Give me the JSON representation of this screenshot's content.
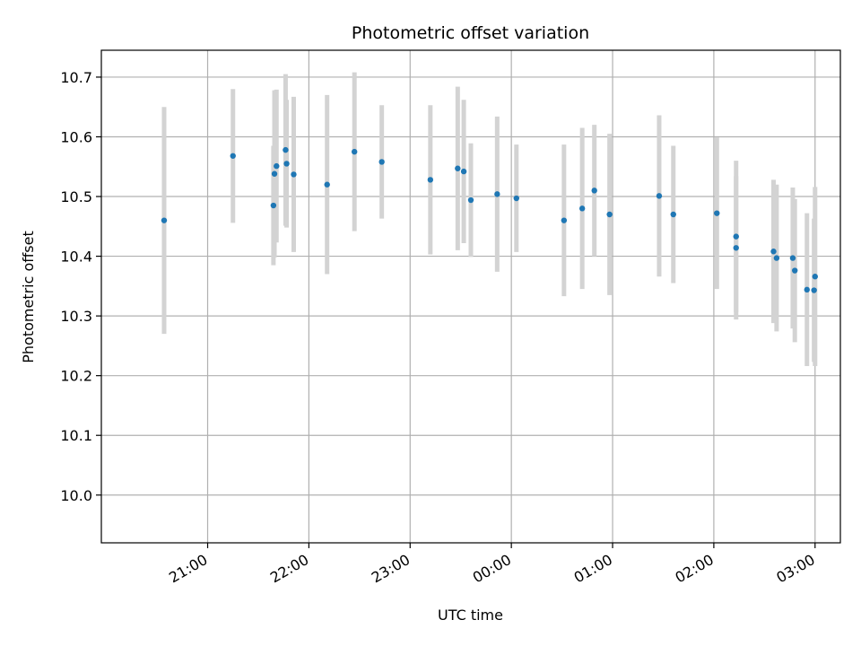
{
  "chart_data": {
    "type": "scatter",
    "title": "Photometric offset variation",
    "xlabel": "UTC time",
    "ylabel": "Photometric offset",
    "grid": true,
    "x_ticks": [
      "21:00",
      "22:00",
      "23:00",
      "00:00",
      "01:00",
      "02:00",
      "03:00"
    ],
    "x_tick_hours": [
      0,
      1,
      2,
      3,
      4,
      5,
      6
    ],
    "x_range_hours": [
      -1.05,
      6.25
    ],
    "x_origin_time": "21:00",
    "y_ticks": [
      "10.0",
      "10.1",
      "10.2",
      "10.3",
      "10.4",
      "10.5",
      "10.6",
      "10.7"
    ],
    "y_tick_values": [
      10.0,
      10.1,
      10.2,
      10.3,
      10.4,
      10.5,
      10.6,
      10.7
    ],
    "ylim": [
      9.92,
      10.745
    ],
    "colors": {
      "point": "#1f77b4",
      "errorbar": "#d3d3d3",
      "grid": "#b0b0b0"
    },
    "series": [
      {
        "points": [
          {
            "t": -0.43,
            "y": 10.46,
            "err": 0.19
          },
          {
            "t": 0.25,
            "y": 10.568,
            "err": 0.112
          },
          {
            "t": 0.65,
            "y": 10.485,
            "err": 0.1
          },
          {
            "t": 0.66,
            "y": 10.538,
            "err": 0.14
          },
          {
            "t": 0.68,
            "y": 10.551,
            "err": 0.128
          },
          {
            "t": 0.77,
            "y": 10.578,
            "err": 0.127
          },
          {
            "t": 0.78,
            "y": 10.555,
            "err": 0.107
          },
          {
            "t": 0.85,
            "y": 10.537,
            "err": 0.13
          },
          {
            "t": 1.18,
            "y": 10.52,
            "err": 0.15
          },
          {
            "t": 1.45,
            "y": 10.575,
            "err": 0.133
          },
          {
            "t": 1.72,
            "y": 10.558,
            "err": 0.095
          },
          {
            "t": 2.2,
            "y": 10.528,
            "err": 0.125
          },
          {
            "t": 2.47,
            "y": 10.547,
            "err": 0.137
          },
          {
            "t": 2.53,
            "y": 10.542,
            "err": 0.12
          },
          {
            "t": 2.6,
            "y": 10.494,
            "err": 0.095
          },
          {
            "t": 2.86,
            "y": 10.504,
            "err": 0.13
          },
          {
            "t": 3.05,
            "y": 10.497,
            "err": 0.09
          },
          {
            "t": 3.52,
            "y": 10.46,
            "err": 0.127
          },
          {
            "t": 3.7,
            "y": 10.48,
            "err": 0.135
          },
          {
            "t": 3.82,
            "y": 10.51,
            "err": 0.11
          },
          {
            "t": 3.97,
            "y": 10.47,
            "err": 0.135
          },
          {
            "t": 4.46,
            "y": 10.501,
            "err": 0.135
          },
          {
            "t": 4.6,
            "y": 10.47,
            "err": 0.115
          },
          {
            "t": 5.03,
            "y": 10.472,
            "err": 0.127
          },
          {
            "t": 5.22,
            "y": 10.433,
            "err": 0.127
          },
          {
            "t": 5.22,
            "y": 10.414,
            "err": 0.12
          },
          {
            "t": 5.59,
            "y": 10.408,
            "err": 0.12
          },
          {
            "t": 5.62,
            "y": 10.397,
            "err": 0.123
          },
          {
            "t": 5.78,
            "y": 10.397,
            "err": 0.118
          },
          {
            "t": 5.8,
            "y": 10.376,
            "err": 0.12
          },
          {
            "t": 5.92,
            "y": 10.344,
            "err": 0.128
          },
          {
            "t": 5.99,
            "y": 10.343,
            "err": 0.12
          },
          {
            "t": 6.0,
            "y": 10.366,
            "err": 0.15
          }
        ]
      }
    ]
  }
}
